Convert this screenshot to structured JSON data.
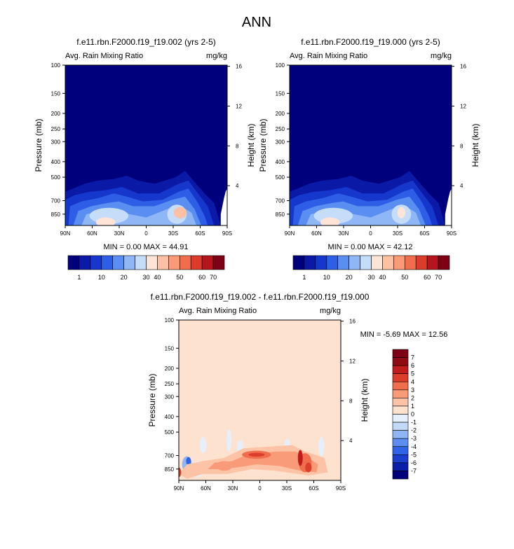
{
  "page_title": "ANN",
  "colors": {
    "panel_scale": [
      "#00007d",
      "#0a19a6",
      "#1537cc",
      "#2e5ee5",
      "#5a8ef0",
      "#8fb7f6",
      "#c6ddfa",
      "#fce4d6",
      "#fcc0a4",
      "#fa9a77",
      "#f06d4e",
      "#dc3c2c",
      "#b5161d",
      "#7d0015"
    ],
    "diff_scale": [
      "#00007d",
      "#0a1fa8",
      "#1a3fcf",
      "#3063e6",
      "#5d8eef",
      "#8fb5f5",
      "#c2d9fa",
      "#e6f0fd",
      "#fde2cf",
      "#fcc3a6",
      "#f99b78",
      "#f06e4d",
      "#dd3d2b",
      "#c01c1c",
      "#8f0b14",
      "#7d0015"
    ],
    "fill_mask": "#ffffff"
  },
  "chart_data": [
    {
      "type": "heatmap",
      "title": "f.e11.rbn.F2000.f19_f19.002 (yrs 2-5)",
      "left_label": "Avg. Rain Mixing Ratio",
      "right_label": "mg/kg",
      "ylabel": "Pressure (mb)",
      "ylabel_right": "Height (km)",
      "x_ticks": [
        "90N",
        "60N",
        "30N",
        "0",
        "30S",
        "60S",
        "90S"
      ],
      "y_ticks": [
        "100",
        "150",
        "200",
        "250",
        "300",
        "400",
        "500",
        "700",
        "850"
      ],
      "y2_ticks": [
        "16",
        "12",
        "8",
        "4"
      ],
      "min_max": "MIN =   0.00  MAX =  44.91",
      "colorbar_ticks": [
        "1",
        "10",
        "20",
        "30",
        "40",
        "50",
        "60",
        "70"
      ]
    },
    {
      "type": "heatmap",
      "title": "f.e11.rbn.F2000.f19_f19.000 (yrs 2-5)",
      "left_label": "Avg. Rain Mixing Ratio",
      "right_label": "mg/kg",
      "ylabel": "Pressure (mb)",
      "ylabel_right": "Height (km)",
      "x_ticks": [
        "90N",
        "60N",
        "30N",
        "0",
        "30S",
        "60S",
        "90S"
      ],
      "y_ticks": [
        "100",
        "150",
        "200",
        "250",
        "300",
        "400",
        "500",
        "700",
        "850"
      ],
      "y2_ticks": [
        "16",
        "12",
        "8",
        "4"
      ],
      "min_max": "MIN =   0.00  MAX =  42.12",
      "colorbar_ticks": [
        "1",
        "10",
        "20",
        "30",
        "40",
        "50",
        "60",
        "70"
      ]
    },
    {
      "type": "heatmap",
      "title": "f.e11.rbn.F2000.f19_f19.002 - f.e11.rbn.F2000.f19_f19.000",
      "left_label": "Avg. Rain Mixing Ratio",
      "right_label": "mg/kg",
      "ylabel": "Pressure (mb)",
      "ylabel_right": "Height (km)",
      "x_ticks": [
        "90N",
        "60N",
        "30N",
        "0",
        "30S",
        "60S",
        "90S"
      ],
      "y_ticks": [
        "100",
        "150",
        "200",
        "250",
        "300",
        "400",
        "500",
        "700",
        "850"
      ],
      "y2_ticks": [
        "16",
        "12",
        "8",
        "4"
      ],
      "min_max": "MIN =  -5.69  MAX =  12.56",
      "colorbar_ticks": [
        "7",
        "6",
        "5",
        "4",
        "3",
        "2",
        "1",
        "0",
        "-1",
        "-2",
        "-3",
        "-4",
        "-5",
        "-6",
        "-7"
      ]
    }
  ]
}
